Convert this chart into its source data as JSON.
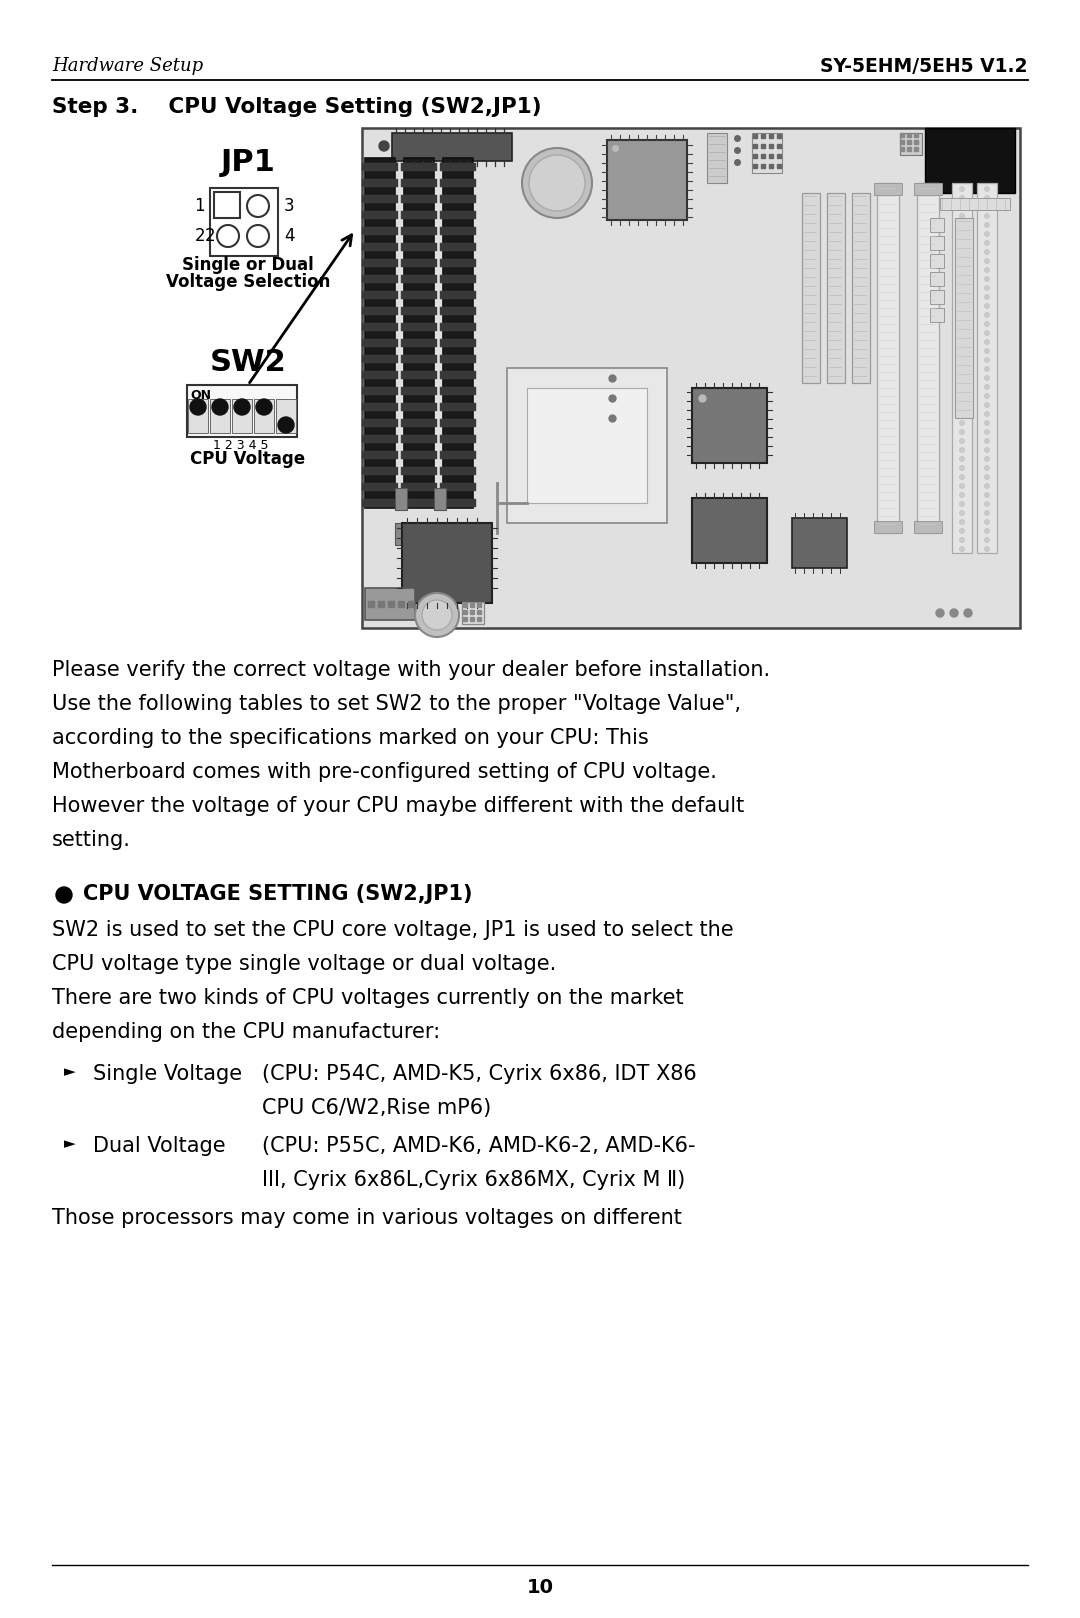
{
  "header_left": "Hardware Setup",
  "header_right": "SY-5EHM/5EH5 V1.2",
  "step_title": "Step 3.    CPU Voltage Setting (SW2,JP1)",
  "body_text": [
    "Please verify the correct voltage with your dealer before installation.",
    "Use the following tables to set SW2 to the proper \"Voltage Value\",",
    "according to the specifications marked on your CPU: This",
    "Motherboard comes with pre-configured setting of CPU voltage.",
    "However the voltage of your CPU maybe different with the default",
    "setting."
  ],
  "bullet_title": "CPU VOLTAGE SETTING (SW2,JP1)",
  "bullet_text": [
    "SW2 is used to set the CPU core voltage, JP1 is used to select the",
    "CPU voltage type single voltage or dual voltage.",
    "There are two kinds of CPU voltages currently on the market",
    "depending on the CPU manufacturer:"
  ],
  "list_item1_label": "Single Voltage",
  "list_item1_line1": "(CPU: P54C, AMD-K5, Cyrix 6x86, IDT X86",
  "list_item1_line2": "CPU C6/W2,Rise mP6)",
  "list_item2_label": "Dual Voltage   ",
  "list_item2_line1": "(CPU: P55C, AMD-K6, AMD-K6-2, AMD-K6-",
  "list_item2_line2": "III, Cyrix 6x86L,Cyrix 6x86MX, Cyrix M Ⅱ)",
  "last_text": "Those processors may come in various voltages on different",
  "page_number": "10",
  "bg_color": "#ffffff",
  "text_color": "#000000"
}
